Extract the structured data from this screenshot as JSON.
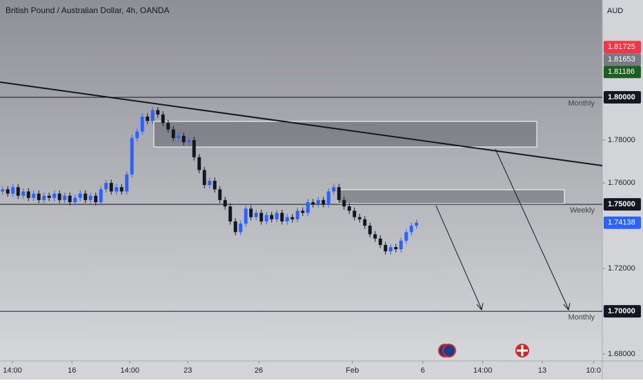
{
  "chart_data": {
    "type": "candlestick",
    "title": "British Pound / Australian Dollar, 4h, OANDA",
    "currency": "AUD",
    "up_color": "#2962ff",
    "down_color": "#131722",
    "open": [
      1.756,
      1.757,
      1.755,
      1.758,
      1.754,
      1.756,
      1.753,
      1.755,
      1.752,
      1.754,
      1.753,
      1.755,
      1.752,
      1.754,
      1.751,
      1.753,
      1.755,
      1.752,
      1.754,
      1.751,
      1.757,
      1.76,
      1.756,
      1.758,
      1.756,
      1.764,
      1.781,
      1.784,
      1.791,
      1.789,
      1.794,
      1.792,
      1.788,
      1.785,
      1.781,
      1.782,
      1.779,
      1.78,
      1.772,
      1.766,
      1.759,
      1.761,
      1.757,
      1.752,
      1.749,
      1.742,
      1.737,
      1.741,
      1.748,
      1.744,
      1.746,
      1.742,
      1.745,
      1.743,
      1.746,
      1.742,
      1.744,
      1.743,
      1.747,
      1.746,
      1.751,
      1.75,
      1.752,
      1.75,
      1.756,
      1.758,
      1.752,
      1.749,
      1.747,
      1.744,
      1.743,
      1.74,
      1.736,
      1.734,
      1.731,
      1.728,
      1.73,
      1.729,
      1.733,
      1.737,
      1.74
    ],
    "high": [
      1.7585,
      1.7585,
      1.7595,
      1.7595,
      1.7575,
      1.7575,
      1.7565,
      1.7565,
      1.7555,
      1.7555,
      1.7565,
      1.7565,
      1.7555,
      1.7555,
      1.7545,
      1.7565,
      1.7565,
      1.7555,
      1.7555,
      1.7585,
      1.7615,
      1.7615,
      1.7595,
      1.7595,
      1.7655,
      1.7825,
      1.7855,
      1.7925,
      1.7925,
      1.7955,
      1.7955,
      1.7935,
      1.7895,
      1.7865,
      1.7835,
      1.7835,
      1.7815,
      1.7815,
      1.7735,
      1.7675,
      1.7625,
      1.7625,
      1.7585,
      1.7535,
      1.7505,
      1.7435,
      1.7425,
      1.7495,
      1.7495,
      1.7475,
      1.7475,
      1.7465,
      1.7465,
      1.7475,
      1.7475,
      1.7455,
      1.7455,
      1.7485,
      1.7485,
      1.7525,
      1.7525,
      1.7535,
      1.7535,
      1.7575,
      1.7595,
      1.7595,
      1.7535,
      1.7505,
      1.7485,
      1.7455,
      1.7445,
      1.7415,
      1.7375,
      1.7355,
      1.7325,
      1.7315,
      1.7315,
      1.7345,
      1.7385,
      1.7415,
      1.7429
    ],
    "low": [
      1.7545,
      1.7535,
      1.7535,
      1.7525,
      1.7525,
      1.7515,
      1.7515,
      1.7505,
      1.7505,
      1.7515,
      1.7515,
      1.7505,
      1.7505,
      1.7495,
      1.7495,
      1.7515,
      1.7505,
      1.7505,
      1.7495,
      1.7495,
      1.7555,
      1.7545,
      1.7545,
      1.7545,
      1.7545,
      1.7625,
      1.7795,
      1.7825,
      1.7875,
      1.7875,
      1.7905,
      1.7865,
      1.7835,
      1.7795,
      1.7795,
      1.7775,
      1.7775,
      1.7705,
      1.7645,
      1.7575,
      1.7575,
      1.7555,
      1.7505,
      1.7475,
      1.7405,
      1.7355,
      1.7355,
      1.7395,
      1.7425,
      1.7425,
      1.7405,
      1.7405,
      1.7415,
      1.7415,
      1.7405,
      1.7405,
      1.7415,
      1.7415,
      1.7445,
      1.7445,
      1.7485,
      1.7485,
      1.7485,
      1.7485,
      1.7545,
      1.7505,
      1.7475,
      1.7455,
      1.7425,
      1.7415,
      1.7385,
      1.7345,
      1.7325,
      1.7295,
      1.7265,
      1.7265,
      1.7275,
      1.7275,
      1.7315,
      1.7355,
      1.7385
    ],
    "close": [
      1.757,
      1.755,
      1.758,
      1.754,
      1.756,
      1.753,
      1.755,
      1.752,
      1.754,
      1.753,
      1.755,
      1.752,
      1.754,
      1.751,
      1.753,
      1.755,
      1.752,
      1.754,
      1.751,
      1.757,
      1.76,
      1.756,
      1.758,
      1.756,
      1.764,
      1.781,
      1.784,
      1.791,
      1.789,
      1.794,
      1.792,
      1.788,
      1.785,
      1.781,
      1.782,
      1.779,
      1.78,
      1.772,
      1.766,
      1.759,
      1.761,
      1.757,
      1.752,
      1.749,
      1.742,
      1.737,
      1.741,
      1.748,
      1.744,
      1.746,
      1.742,
      1.745,
      1.743,
      1.746,
      1.742,
      1.744,
      1.743,
      1.747,
      1.746,
      1.751,
      1.75,
      1.752,
      1.75,
      1.756,
      1.758,
      1.752,
      1.749,
      1.747,
      1.744,
      1.743,
      1.74,
      1.736,
      1.734,
      1.731,
      1.728,
      1.73,
      1.729,
      1.733,
      1.737,
      1.74,
      1.7414
    ],
    "xlim": [
      0,
      116.4
    ],
    "xticks": [
      {
        "value": 2.4,
        "label": "14:00"
      },
      {
        "value": 13.9,
        "label": "16"
      },
      {
        "value": 25.1,
        "label": "14:00"
      },
      {
        "value": 36.3,
        "label": "23"
      },
      {
        "value": 50,
        "label": "26"
      },
      {
        "value": 68.1,
        "label": "Feb"
      },
      {
        "value": 81.7,
        "label": "6"
      },
      {
        "value": 93.3,
        "label": "14:00"
      },
      {
        "value": 104.8,
        "label": "13"
      },
      {
        "value": 114.7,
        "label": "10:0"
      }
    ],
    "ylim": [
      1.6768,
      1.8455
    ],
    "yticks": [
      {
        "value": 1.68,
        "label": "1.68000"
      },
      {
        "value": 1.72,
        "label": "1.72000"
      },
      {
        "value": 1.76,
        "label": "1.76000"
      },
      {
        "value": 1.78,
        "label": "1.78000"
      }
    ],
    "levels": [
      {
        "value": 1.8,
        "label": "1.80000",
        "note": "Monthly"
      },
      {
        "value": 1.75,
        "label": "1.75000",
        "note": "Weekly"
      },
      {
        "value": 1.7,
        "label": "1.70000",
        "note": "Monthly"
      }
    ],
    "level_color": "#131722",
    "price_labels": [
      {
        "value": 1.81725,
        "label": "1.81725",
        "color": "#f23645"
      },
      {
        "value": 1.81653,
        "label": "1.81653",
        "color": "#787b86"
      },
      {
        "value": 1.81186,
        "label": "1.81186",
        "color": "#1b5e20"
      },
      {
        "value": 1.74138,
        "label": "1.74138",
        "color": "#2962ff"
      }
    ]
  }
}
